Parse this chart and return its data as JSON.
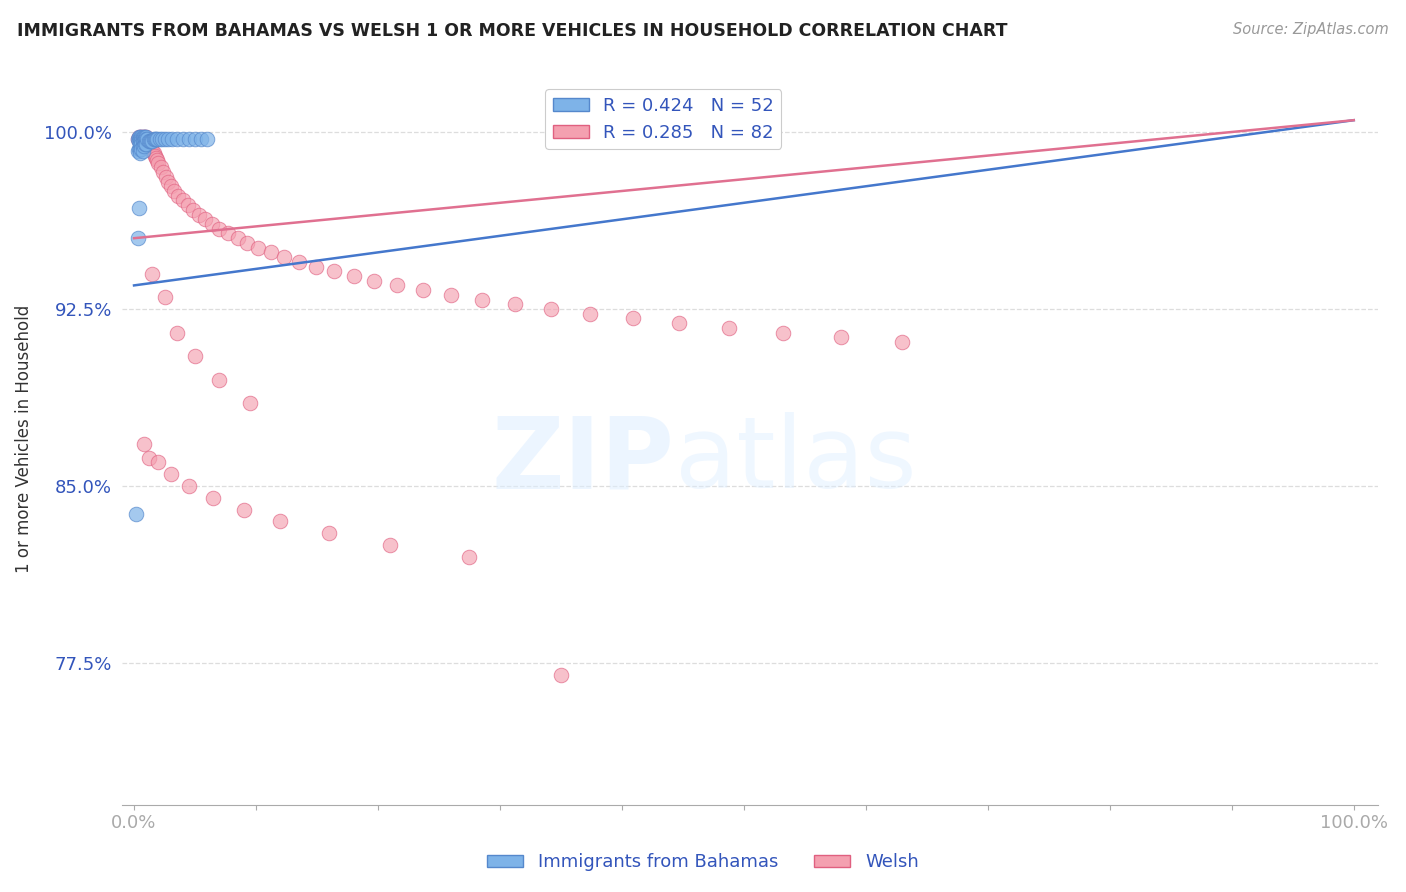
{
  "title": "IMMIGRANTS FROM BAHAMAS VS WELSH 1 OR MORE VEHICLES IN HOUSEHOLD CORRELATION CHART",
  "source": "Source: ZipAtlas.com",
  "ylabel": "1 or more Vehicles in Household",
  "xlim": [
    -0.01,
    1.02
  ],
  "ylim": [
    0.715,
    1.025
  ],
  "yticks": [
    0.775,
    0.85,
    0.925,
    1.0
  ],
  "ytick_labels": [
    "77.5%",
    "85.0%",
    "92.5%",
    "100.0%"
  ],
  "xtick_positions": [
    0.0,
    0.1,
    0.2,
    0.3,
    0.4,
    0.5,
    0.6,
    0.7,
    0.8,
    0.9,
    1.0
  ],
  "xtick_labels": [
    "0.0%",
    "",
    "",
    "",
    "",
    "",
    "",
    "",
    "",
    "",
    "100.0%"
  ],
  "legend_labels": [
    "Immigrants from Bahamas",
    "Welsh"
  ],
  "blue_R": 0.424,
  "blue_N": 52,
  "pink_R": 0.285,
  "pink_N": 82,
  "blue_color": "#7EB3E8",
  "pink_color": "#F4A0B0",
  "blue_edge_color": "#5588CC",
  "pink_edge_color": "#E06080",
  "blue_line_color": "#4477CC",
  "pink_line_color": "#E07090",
  "axis_label_color": "#3355BB",
  "grid_color": "#DDDDDD",
  "title_color": "#222222",
  "blue_x": [
    0.002,
    0.003,
    0.003,
    0.004,
    0.004,
    0.004,
    0.005,
    0.005,
    0.005,
    0.005,
    0.005,
    0.006,
    0.006,
    0.006,
    0.006,
    0.006,
    0.007,
    0.007,
    0.007,
    0.007,
    0.007,
    0.008,
    0.008,
    0.008,
    0.009,
    0.009,
    0.009,
    0.01,
    0.01,
    0.01,
    0.011,
    0.012,
    0.013,
    0.014,
    0.015,
    0.016,
    0.017,
    0.018,
    0.019,
    0.021,
    0.023,
    0.025,
    0.028,
    0.031,
    0.035,
    0.04,
    0.045,
    0.05,
    0.055,
    0.06,
    0.003,
    0.004
  ],
  "blue_y": [
    0.838,
    0.997,
    0.992,
    0.998,
    0.996,
    0.993,
    0.998,
    0.997,
    0.995,
    0.993,
    0.991,
    0.998,
    0.997,
    0.996,
    0.995,
    0.993,
    0.998,
    0.997,
    0.996,
    0.994,
    0.992,
    0.998,
    0.996,
    0.994,
    0.998,
    0.997,
    0.995,
    0.998,
    0.997,
    0.995,
    0.997,
    0.996,
    0.996,
    0.996,
    0.996,
    0.997,
    0.997,
    0.997,
    0.997,
    0.997,
    0.997,
    0.997,
    0.997,
    0.997,
    0.997,
    0.997,
    0.997,
    0.997,
    0.997,
    0.997,
    0.955,
    0.968
  ],
  "pink_x": [
    0.003,
    0.004,
    0.004,
    0.005,
    0.005,
    0.006,
    0.006,
    0.007,
    0.007,
    0.008,
    0.008,
    0.009,
    0.009,
    0.01,
    0.01,
    0.01,
    0.011,
    0.012,
    0.013,
    0.014,
    0.015,
    0.016,
    0.017,
    0.018,
    0.019,
    0.02,
    0.022,
    0.024,
    0.026,
    0.028,
    0.03,
    0.033,
    0.036,
    0.04,
    0.044,
    0.048,
    0.053,
    0.058,
    0.064,
    0.07,
    0.077,
    0.085,
    0.093,
    0.102,
    0.112,
    0.123,
    0.135,
    0.149,
    0.164,
    0.18,
    0.197,
    0.216,
    0.237,
    0.26,
    0.285,
    0.312,
    0.342,
    0.374,
    0.409,
    0.447,
    0.488,
    0.532,
    0.58,
    0.63,
    0.015,
    0.025,
    0.035,
    0.05,
    0.07,
    0.095,
    0.008,
    0.012,
    0.02,
    0.03,
    0.045,
    0.065,
    0.09,
    0.12,
    0.16,
    0.21,
    0.275,
    0.35
  ],
  "pink_y": [
    0.997,
    0.998,
    0.997,
    0.998,
    0.997,
    0.998,
    0.997,
    0.998,
    0.997,
    0.998,
    0.997,
    0.998,
    0.997,
    0.998,
    0.997,
    0.996,
    0.996,
    0.995,
    0.994,
    0.993,
    0.992,
    0.991,
    0.99,
    0.989,
    0.988,
    0.987,
    0.985,
    0.983,
    0.981,
    0.979,
    0.977,
    0.975,
    0.973,
    0.971,
    0.969,
    0.967,
    0.965,
    0.963,
    0.961,
    0.959,
    0.957,
    0.955,
    0.953,
    0.951,
    0.949,
    0.947,
    0.945,
    0.943,
    0.941,
    0.939,
    0.937,
    0.935,
    0.933,
    0.931,
    0.929,
    0.927,
    0.925,
    0.923,
    0.921,
    0.919,
    0.917,
    0.915,
    0.913,
    0.911,
    0.94,
    0.93,
    0.915,
    0.905,
    0.895,
    0.885,
    0.868,
    0.862,
    0.86,
    0.855,
    0.85,
    0.845,
    0.84,
    0.835,
    0.83,
    0.825,
    0.82,
    0.77
  ],
  "blue_trend_x": [
    0.0,
    1.0
  ],
  "blue_trend_y_start": 0.935,
  "blue_trend_y_end": 1.005,
  "pink_trend_x": [
    0.0,
    1.0
  ],
  "pink_trend_y_start": 0.955,
  "pink_trend_y_end": 1.005
}
